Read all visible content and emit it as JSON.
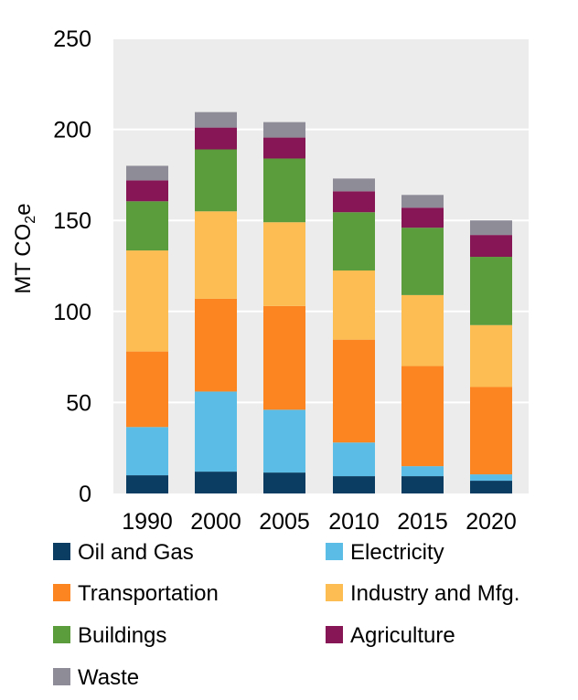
{
  "chart_data": {
    "type": "bar",
    "stacked": true,
    "categories": [
      "1990",
      "2000",
      "2005",
      "2010",
      "2015",
      "2020"
    ],
    "ylabel": {
      "main": "MT CO",
      "sub": "2",
      "tail": "e"
    },
    "ylim": [
      0,
      250
    ],
    "yticks": [
      "0",
      "50",
      "100",
      "150",
      "200",
      "250"
    ],
    "grid": true,
    "legend_placement": "bottom",
    "series": [
      {
        "name": "Oil and Gas",
        "color": "#0b3d62",
        "values": [
          10,
          12,
          11.5,
          9.5,
          9.5,
          7
        ]
      },
      {
        "name": "Electricity",
        "color": "#5bbde6",
        "values": [
          26.5,
          44,
          34.5,
          18.5,
          5.5,
          3.5
        ]
      },
      {
        "name": "Transportation",
        "color": "#fc8521",
        "values": [
          41.5,
          51,
          57,
          56.5,
          55,
          48
        ]
      },
      {
        "name": "Industry and Mfg.",
        "color": "#fdbd52",
        "values": [
          55.5,
          48,
          46,
          38,
          39,
          34
        ]
      },
      {
        "name": "Buildings",
        "color": "#5b9c3c",
        "values": [
          27,
          34,
          35,
          32,
          37,
          37.5
        ]
      },
      {
        "name": "Agriculture",
        "color": "#861655",
        "values": [
          11.5,
          12,
          11.5,
          11.5,
          11,
          12
        ]
      },
      {
        "name": "Waste",
        "color": "#8e8c97",
        "values": [
          8,
          8.5,
          8.5,
          7,
          7,
          8
        ]
      }
    ]
  }
}
